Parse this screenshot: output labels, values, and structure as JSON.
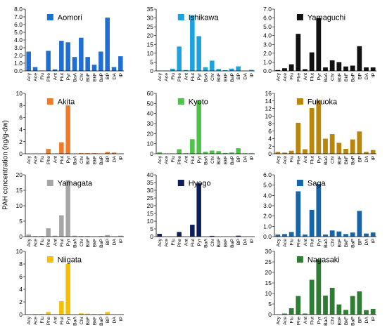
{
  "ylabel": "PAH concentration (ng/g-dw)",
  "categories": [
    "Acy",
    "Ace",
    "Flu",
    "Phe",
    "Ant",
    "Flut",
    "Pyr",
    "BaA",
    "Chr",
    "BbF",
    "BkF",
    "BaP",
    "BP",
    "DA",
    "IP"
  ],
  "chart_data": [
    {
      "type": "bar",
      "title": "Aomori",
      "color": "#1f6ed4",
      "ylim": [
        0,
        8
      ],
      "yticks": [
        0,
        1,
        2,
        3,
        4,
        5,
        6,
        7,
        8
      ],
      "decimals": 1,
      "values": [
        2.5,
        0.5,
        0.05,
        2.6,
        0.2,
        3.9,
        3.7,
        1.8,
        4.3,
        1.8,
        0.8,
        2.5,
        6.9,
        0.5,
        1.9
      ]
    },
    {
      "type": "bar",
      "title": "Ishikawa",
      "color": "#1aa3e0",
      "ylim": [
        0,
        35
      ],
      "yticks": [
        0,
        5,
        10,
        15,
        20,
        25,
        30,
        35
      ],
      "decimals": 0,
      "values": [
        0.2,
        0.2,
        1.3,
        13.8,
        0.5,
        31.5,
        19.7,
        2.1,
        5.8,
        1.1,
        0.4,
        1.3,
        2.6,
        0.2,
        0.6
      ]
    },
    {
      "type": "bar",
      "title": "Yamaguchi",
      "color": "#111111",
      "ylim": [
        0,
        7
      ],
      "yticks": [
        0,
        1,
        2,
        3,
        4,
        5,
        6,
        7
      ],
      "decimals": 1,
      "values": [
        0.1,
        0.3,
        0.75,
        4.2,
        0.2,
        2.1,
        6.0,
        0.4,
        1.2,
        1.0,
        0.5,
        0.6,
        2.8,
        0.4,
        0.4
      ]
    },
    {
      "type": "bar",
      "title": "Akita",
      "color": "#f07a28",
      "ylim": [
        0,
        10
      ],
      "yticks": [
        0,
        2,
        4,
        6,
        8,
        10
      ],
      "decimals": 0,
      "values": [
        0,
        0,
        0,
        0.8,
        0,
        1.9,
        8.0,
        0,
        0.1,
        0.1,
        0.1,
        0.05,
        0.3,
        0.2,
        0
      ]
    },
    {
      "type": "bar",
      "title": "Kyoto",
      "color": "#4cc447",
      "ylim": [
        0,
        60
      ],
      "yticks": [
        0,
        10,
        20,
        30,
        40,
        50,
        60
      ],
      "decimals": 0,
      "values": [
        1.5,
        0.3,
        0.3,
        4.5,
        0.5,
        14.5,
        53.0,
        2.0,
        3.2,
        2.6,
        0.8,
        1.3,
        5.5,
        0.5,
        0.5
      ]
    },
    {
      "type": "bar",
      "title": "Fukuoka",
      "color": "#b8860b",
      "ylim": [
        0,
        16
      ],
      "yticks": [
        0,
        2,
        4,
        6,
        8,
        10,
        12,
        14,
        16
      ],
      "decimals": 0,
      "values": [
        0.5,
        0.3,
        0.8,
        8.2,
        1.2,
        12.1,
        14.2,
        4.0,
        5.2,
        2.9,
        1.3,
        3.8,
        5.9,
        0.5,
        1.0
      ]
    },
    {
      "type": "bar",
      "title": "Yamagata",
      "color": "#a6a6a6",
      "ylim": [
        0,
        20
      ],
      "yticks": [
        0,
        5,
        10,
        15,
        20
      ],
      "decimals": 0,
      "values": [
        0.7,
        0.2,
        0.2,
        2.7,
        0.3,
        6.9,
        18.3,
        0.3,
        0.2,
        0.2,
        0.1,
        0.2,
        0.5,
        0.1,
        0.3
      ]
    },
    {
      "type": "bar",
      "title": "Hyogo",
      "color": "#0d1f5c",
      "ylim": [
        0,
        40
      ],
      "yticks": [
        0,
        5,
        10,
        15,
        20,
        25,
        30,
        35,
        40
      ],
      "decimals": 0,
      "values": [
        1.8,
        0,
        0,
        3.0,
        0,
        7.7,
        34.5,
        0,
        0.5,
        0,
        0,
        0,
        0.6,
        0,
        0
      ]
    },
    {
      "type": "bar",
      "title": "Saga",
      "color": "#1565a8",
      "ylim": [
        0,
        6
      ],
      "yticks": [
        0,
        1,
        2,
        3,
        4,
        5,
        6
      ],
      "decimals": 1,
      "values": [
        0.2,
        0.25,
        0.45,
        4.4,
        0.2,
        2.6,
        5.1,
        0.2,
        0.6,
        0.5,
        0.25,
        0.4,
        2.5,
        0.3,
        0.4
      ]
    },
    {
      "type": "bar",
      "title": "Niigata",
      "color": "#f5c000",
      "ylim": [
        0,
        10
      ],
      "yticks": [
        0,
        2,
        4,
        6,
        8,
        10
      ],
      "decimals": 0,
      "values": [
        0.05,
        0.1,
        0.1,
        0.4,
        0.05,
        2.1,
        8.0,
        0.05,
        0.2,
        0.15,
        0.1,
        0.1,
        0.4,
        0.05,
        0.05
      ]
    },
    {
      "type": "bar",
      "title": "Nagasaki",
      "color": "#2e7d32",
      "ylim": [
        0,
        30
      ],
      "yticks": [
        0,
        5,
        10,
        15,
        20,
        25,
        30
      ],
      "decimals": 0,
      "values": [
        0.1,
        0.5,
        3.0,
        8.8,
        0.5,
        16.5,
        26.2,
        9.0,
        12.7,
        4.8,
        2.2,
        8.8,
        11.0,
        2.1,
        2.7
      ]
    }
  ]
}
